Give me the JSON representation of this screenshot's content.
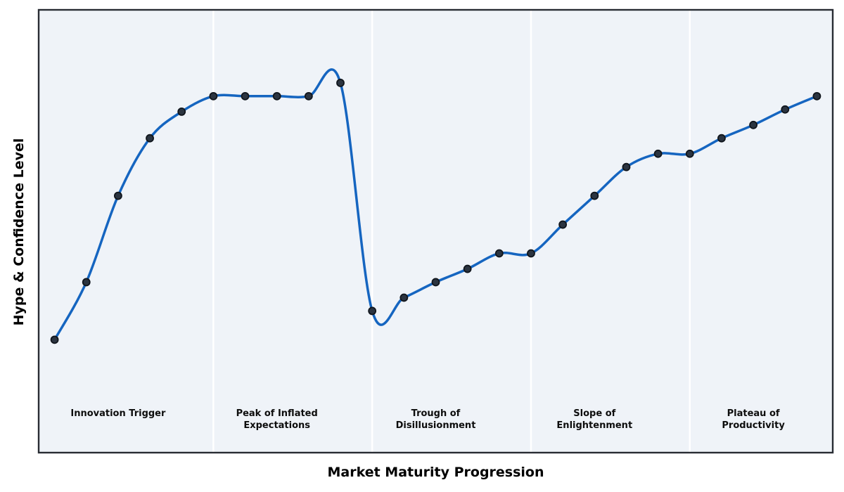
{
  "chart_data": {
    "type": "line",
    "title": "",
    "xlabel": "Market Maturity Progression",
    "ylabel": "Hype & Confidence Level",
    "x": [
      0,
      1,
      2,
      3,
      4,
      5,
      6,
      7,
      8,
      9,
      10,
      11,
      12,
      13,
      14,
      15,
      16,
      17,
      18,
      19,
      20,
      21,
      22,
      23,
      24
    ],
    "values": [
      25.5,
      38.5,
      58,
      71,
      77,
      80.5,
      80.5,
      80.5,
      80.5,
      83.5,
      32,
      35,
      38.5,
      41.5,
      45,
      45,
      51.5,
      58,
      64.5,
      67.5,
      67.5,
      71,
      74,
      77.5,
      80.5
    ],
    "xlim": [
      -0.5,
      24.5
    ],
    "ylim": [
      0,
      100
    ],
    "grid": false,
    "legend": "none",
    "ticks": "none",
    "curve_style": "smooth-spline-with-markers",
    "phases": [
      {
        "label": "Innovation Trigger",
        "center_x": 2
      },
      {
        "label": "Peak of Inflated\nExpectations",
        "center_x": 7
      },
      {
        "label": "Trough of\nDisillusionment",
        "center_x": 12
      },
      {
        "label": "Slope of\nEnlightenment",
        "center_x": 17
      },
      {
        "label": "Plateau of\nProductivity",
        "center_x": 22
      }
    ],
    "phase_boundaries_x": [
      5,
      10,
      15,
      20
    ],
    "colors": {
      "line": "#1565c0",
      "marker_fill": "#2b3440",
      "marker_edge": "#10151c",
      "plot_background": "#eff3f8",
      "divider": "#ffffff",
      "frame": "#282c33",
      "label_text": "#0d0d0d"
    }
  }
}
